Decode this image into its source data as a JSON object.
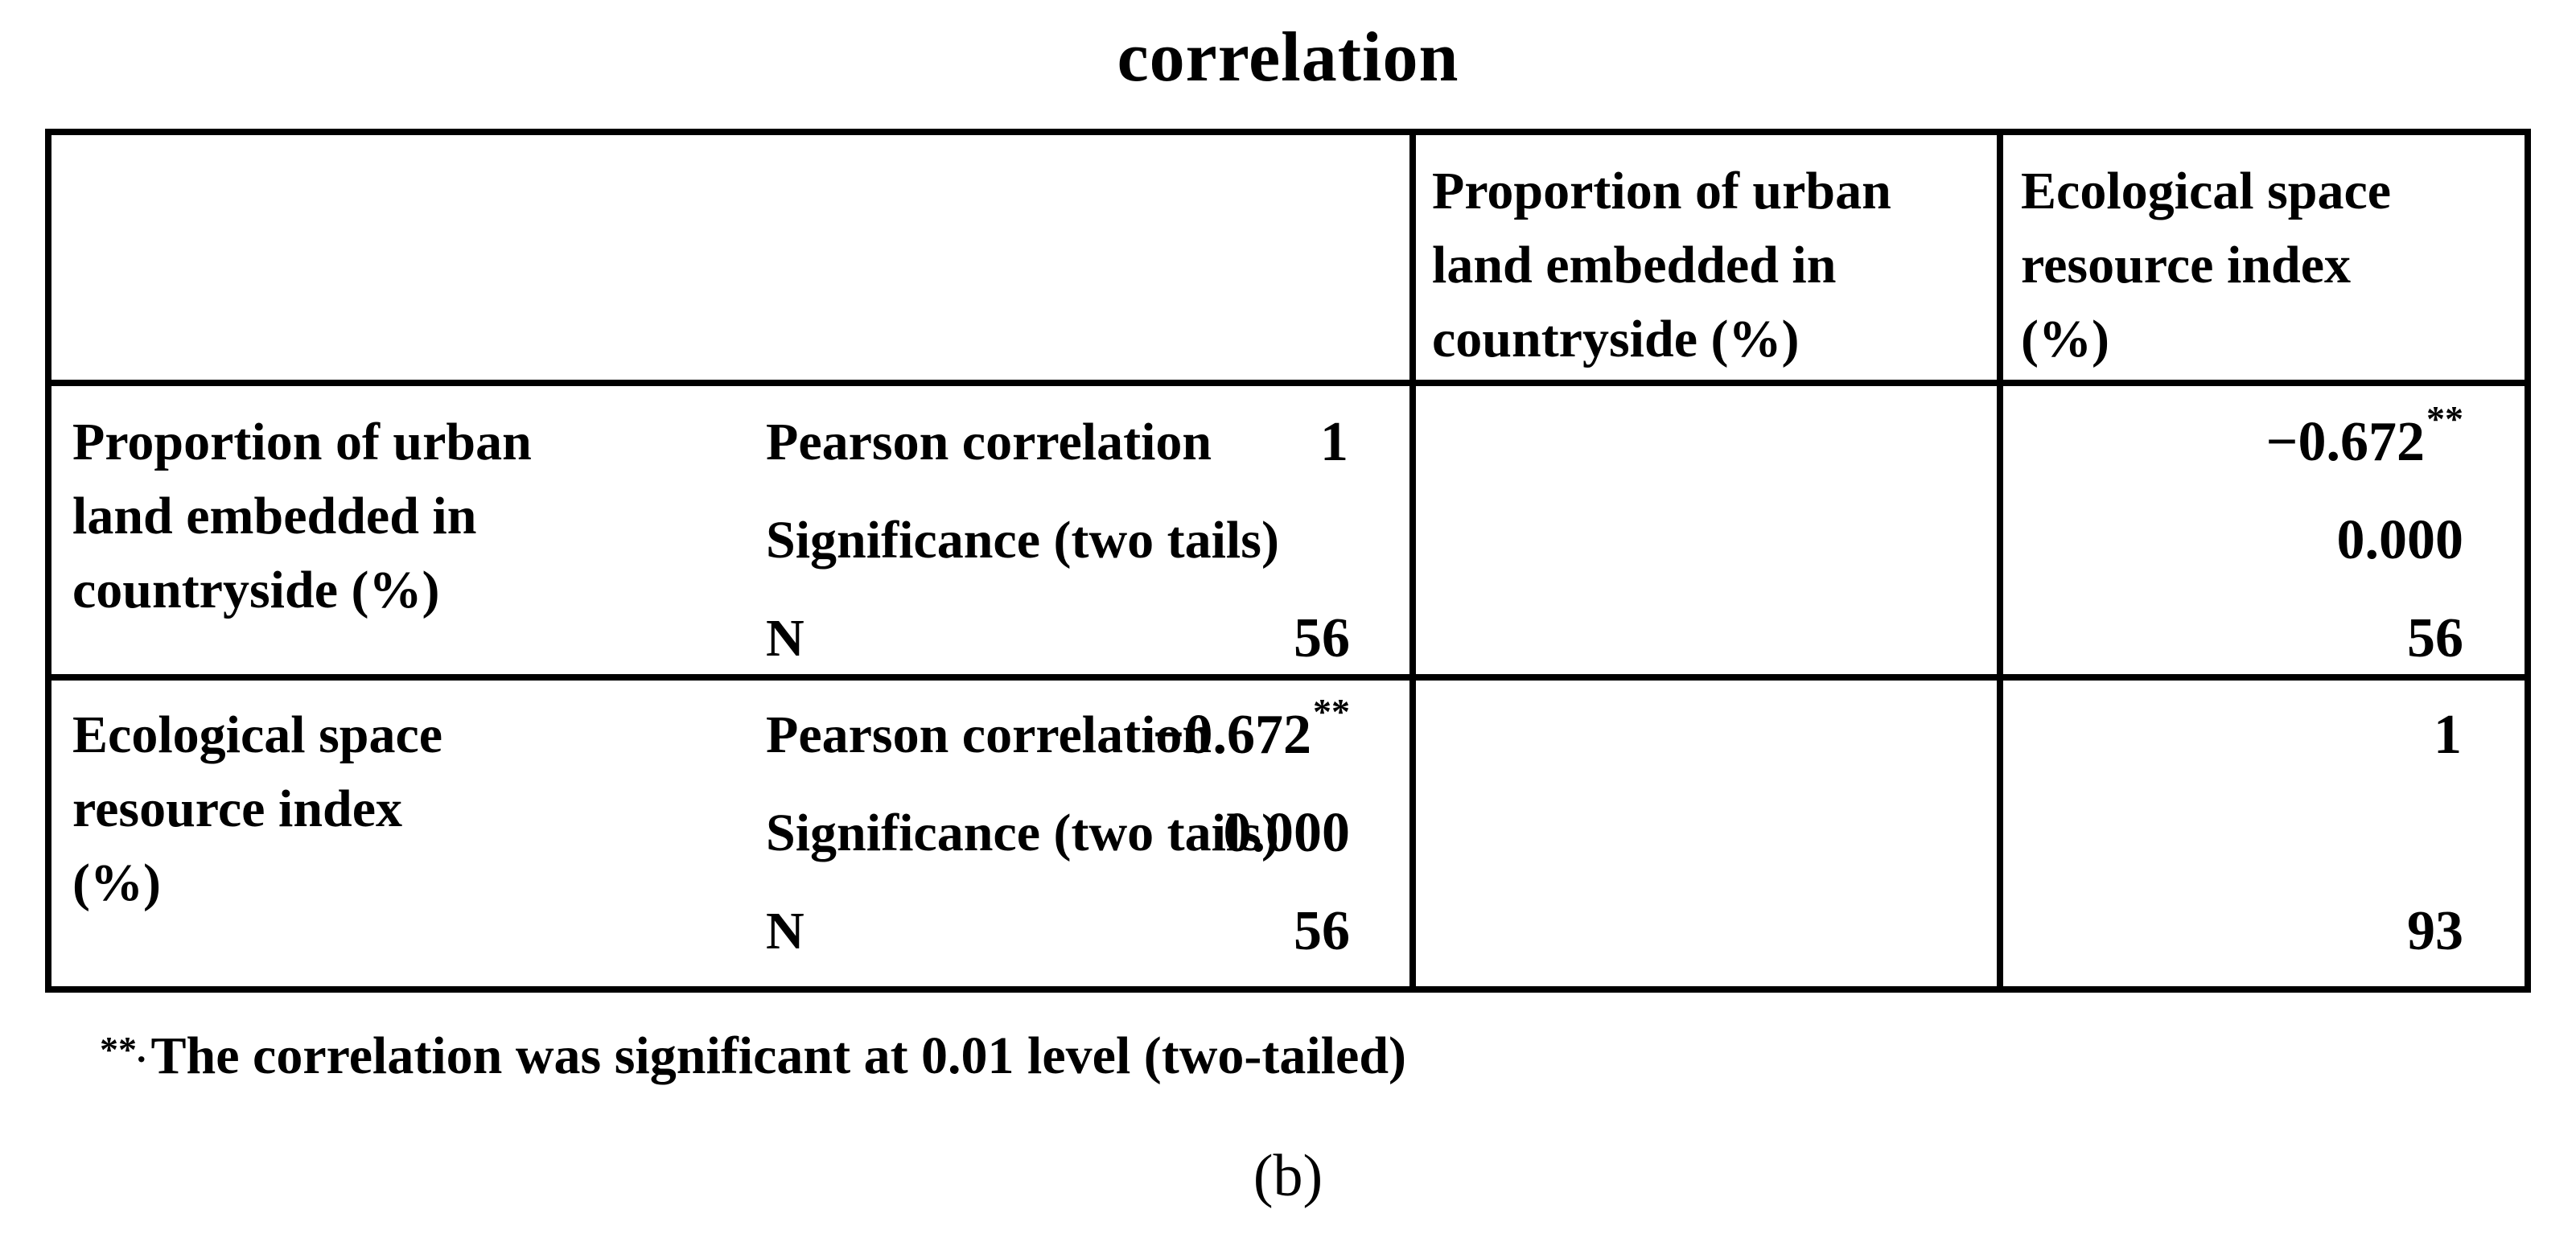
{
  "title": "correlation",
  "table": {
    "col_headers": [
      "Proportion of urban\nland embedded in\ncountryside (%)",
      "Ecological space\nresource index\n (%)"
    ],
    "rows": [
      {
        "label": "Proportion of urban\nland embedded in\ncountryside (%)",
        "stats": [
          "Pearson correlation",
          "Significance (two tails)",
          "N"
        ],
        "col1": [
          "1",
          "",
          "56"
        ],
        "col2": [
          "−0.672",
          "0.000",
          "56"
        ],
        "col2_marks": [
          "**",
          "",
          ""
        ],
        "col1_marks": [
          "",
          "",
          ""
        ]
      },
      {
        "label": "Ecological space\nresource index\n (%)",
        "stats": [
          "Pearson correlation",
          "Significance (two tails)",
          "N"
        ],
        "col1": [
          "−0.672",
          "0.000",
          "56"
        ],
        "col2": [
          "1",
          "",
          "93"
        ],
        "col1_marks": [
          "**",
          "",
          ""
        ],
        "col2_marks": [
          "",
          "",
          ""
        ]
      }
    ]
  },
  "footnote": {
    "mark": "**.",
    "text": "The correlation was significant at 0.01 level (two-tailed)"
  },
  "panel_label": "(b)"
}
